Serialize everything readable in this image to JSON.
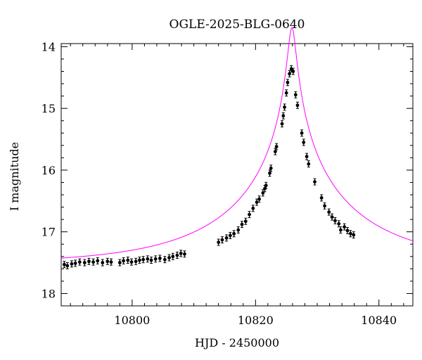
{
  "chart_data": {
    "type": "scatter",
    "title": "OGLE-2025-BLG-0640",
    "xlabel": "HJD - 2450000",
    "ylabel": "I magnitude",
    "xlim": [
      10788.5,
      10845.5
    ],
    "ylim": [
      18.2,
      13.95
    ],
    "y_inverted": true,
    "x_ticks": [
      10800,
      10820,
      10840
    ],
    "y_ticks": [
      14,
      15,
      16,
      17,
      18
    ],
    "grid": false,
    "model_color": "#ff00ff",
    "point_color": "#000000",
    "model": {
      "baseline_mag": 17.52,
      "t0": 10825.9,
      "u0": 0.028,
      "tE": 22.0,
      "fs": 0.95,
      "x_range": [
        10788.5,
        10845.5
      ]
    },
    "series": [
      {
        "points": [
          [
            10789.0,
            17.53
          ],
          [
            10789.5,
            17.55
          ],
          [
            10790.2,
            17.52
          ],
          [
            10790.8,
            17.51
          ],
          [
            10791.5,
            17.49
          ],
          [
            10792.3,
            17.5
          ],
          [
            10793.0,
            17.48
          ],
          [
            10793.7,
            17.49
          ],
          [
            10794.4,
            17.47
          ],
          [
            10795.2,
            17.5
          ],
          [
            10796.0,
            17.48
          ],
          [
            10796.6,
            17.49
          ],
          [
            10798.0,
            17.5
          ],
          [
            10798.6,
            17.47
          ],
          [
            10799.3,
            17.46
          ],
          [
            10799.9,
            17.49
          ],
          [
            10800.6,
            17.48
          ],
          [
            10801.2,
            17.46
          ],
          [
            10801.8,
            17.45
          ],
          [
            10802.5,
            17.44
          ],
          [
            10803.1,
            17.46
          ],
          [
            10803.8,
            17.44
          ],
          [
            10804.5,
            17.43
          ],
          [
            10805.3,
            17.45
          ],
          [
            10806.0,
            17.42
          ],
          [
            10806.6,
            17.4
          ],
          [
            10807.3,
            17.38
          ],
          [
            10807.9,
            17.35
          ],
          [
            10808.5,
            17.36
          ],
          [
            10814.0,
            17.17
          ],
          [
            10814.6,
            17.13
          ],
          [
            10815.3,
            17.1
          ],
          [
            10815.9,
            17.06
          ],
          [
            10816.5,
            17.03
          ],
          [
            10817.2,
            16.97
          ],
          [
            10817.8,
            16.88
          ],
          [
            10818.4,
            16.83
          ],
          [
            10819.0,
            16.72
          ],
          [
            10819.6,
            16.62
          ],
          [
            10820.2,
            16.52
          ],
          [
            10820.6,
            16.47
          ],
          [
            10821.2,
            16.37
          ],
          [
            10821.5,
            16.3
          ],
          [
            10821.7,
            16.25
          ],
          [
            10822.3,
            16.05
          ],
          [
            10822.5,
            15.97
          ],
          [
            10823.2,
            15.7
          ],
          [
            10823.4,
            15.62
          ],
          [
            10824.3,
            15.25
          ],
          [
            10824.5,
            15.12
          ],
          [
            10824.7,
            14.98
          ],
          [
            10825.0,
            14.75
          ],
          [
            10825.2,
            14.58
          ],
          [
            10825.5,
            14.44
          ],
          [
            10825.8,
            14.36
          ],
          [
            10826.1,
            14.4
          ],
          [
            10826.5,
            14.78
          ],
          [
            10826.8,
            14.95
          ],
          [
            10827.5,
            15.4
          ],
          [
            10827.8,
            15.55
          ],
          [
            10828.3,
            15.78
          ],
          [
            10828.6,
            15.9
          ],
          [
            10829.6,
            16.19
          ],
          [
            10830.7,
            16.45
          ],
          [
            10831.2,
            16.58
          ],
          [
            10831.9,
            16.68
          ],
          [
            10832.4,
            16.76
          ],
          [
            10832.9,
            16.82
          ],
          [
            10833.5,
            16.87
          ],
          [
            10833.8,
            16.97
          ],
          [
            10834.4,
            16.92
          ],
          [
            10834.9,
            16.98
          ],
          [
            10835.4,
            17.03
          ],
          [
            10835.9,
            17.05
          ]
        ]
      }
    ]
  }
}
